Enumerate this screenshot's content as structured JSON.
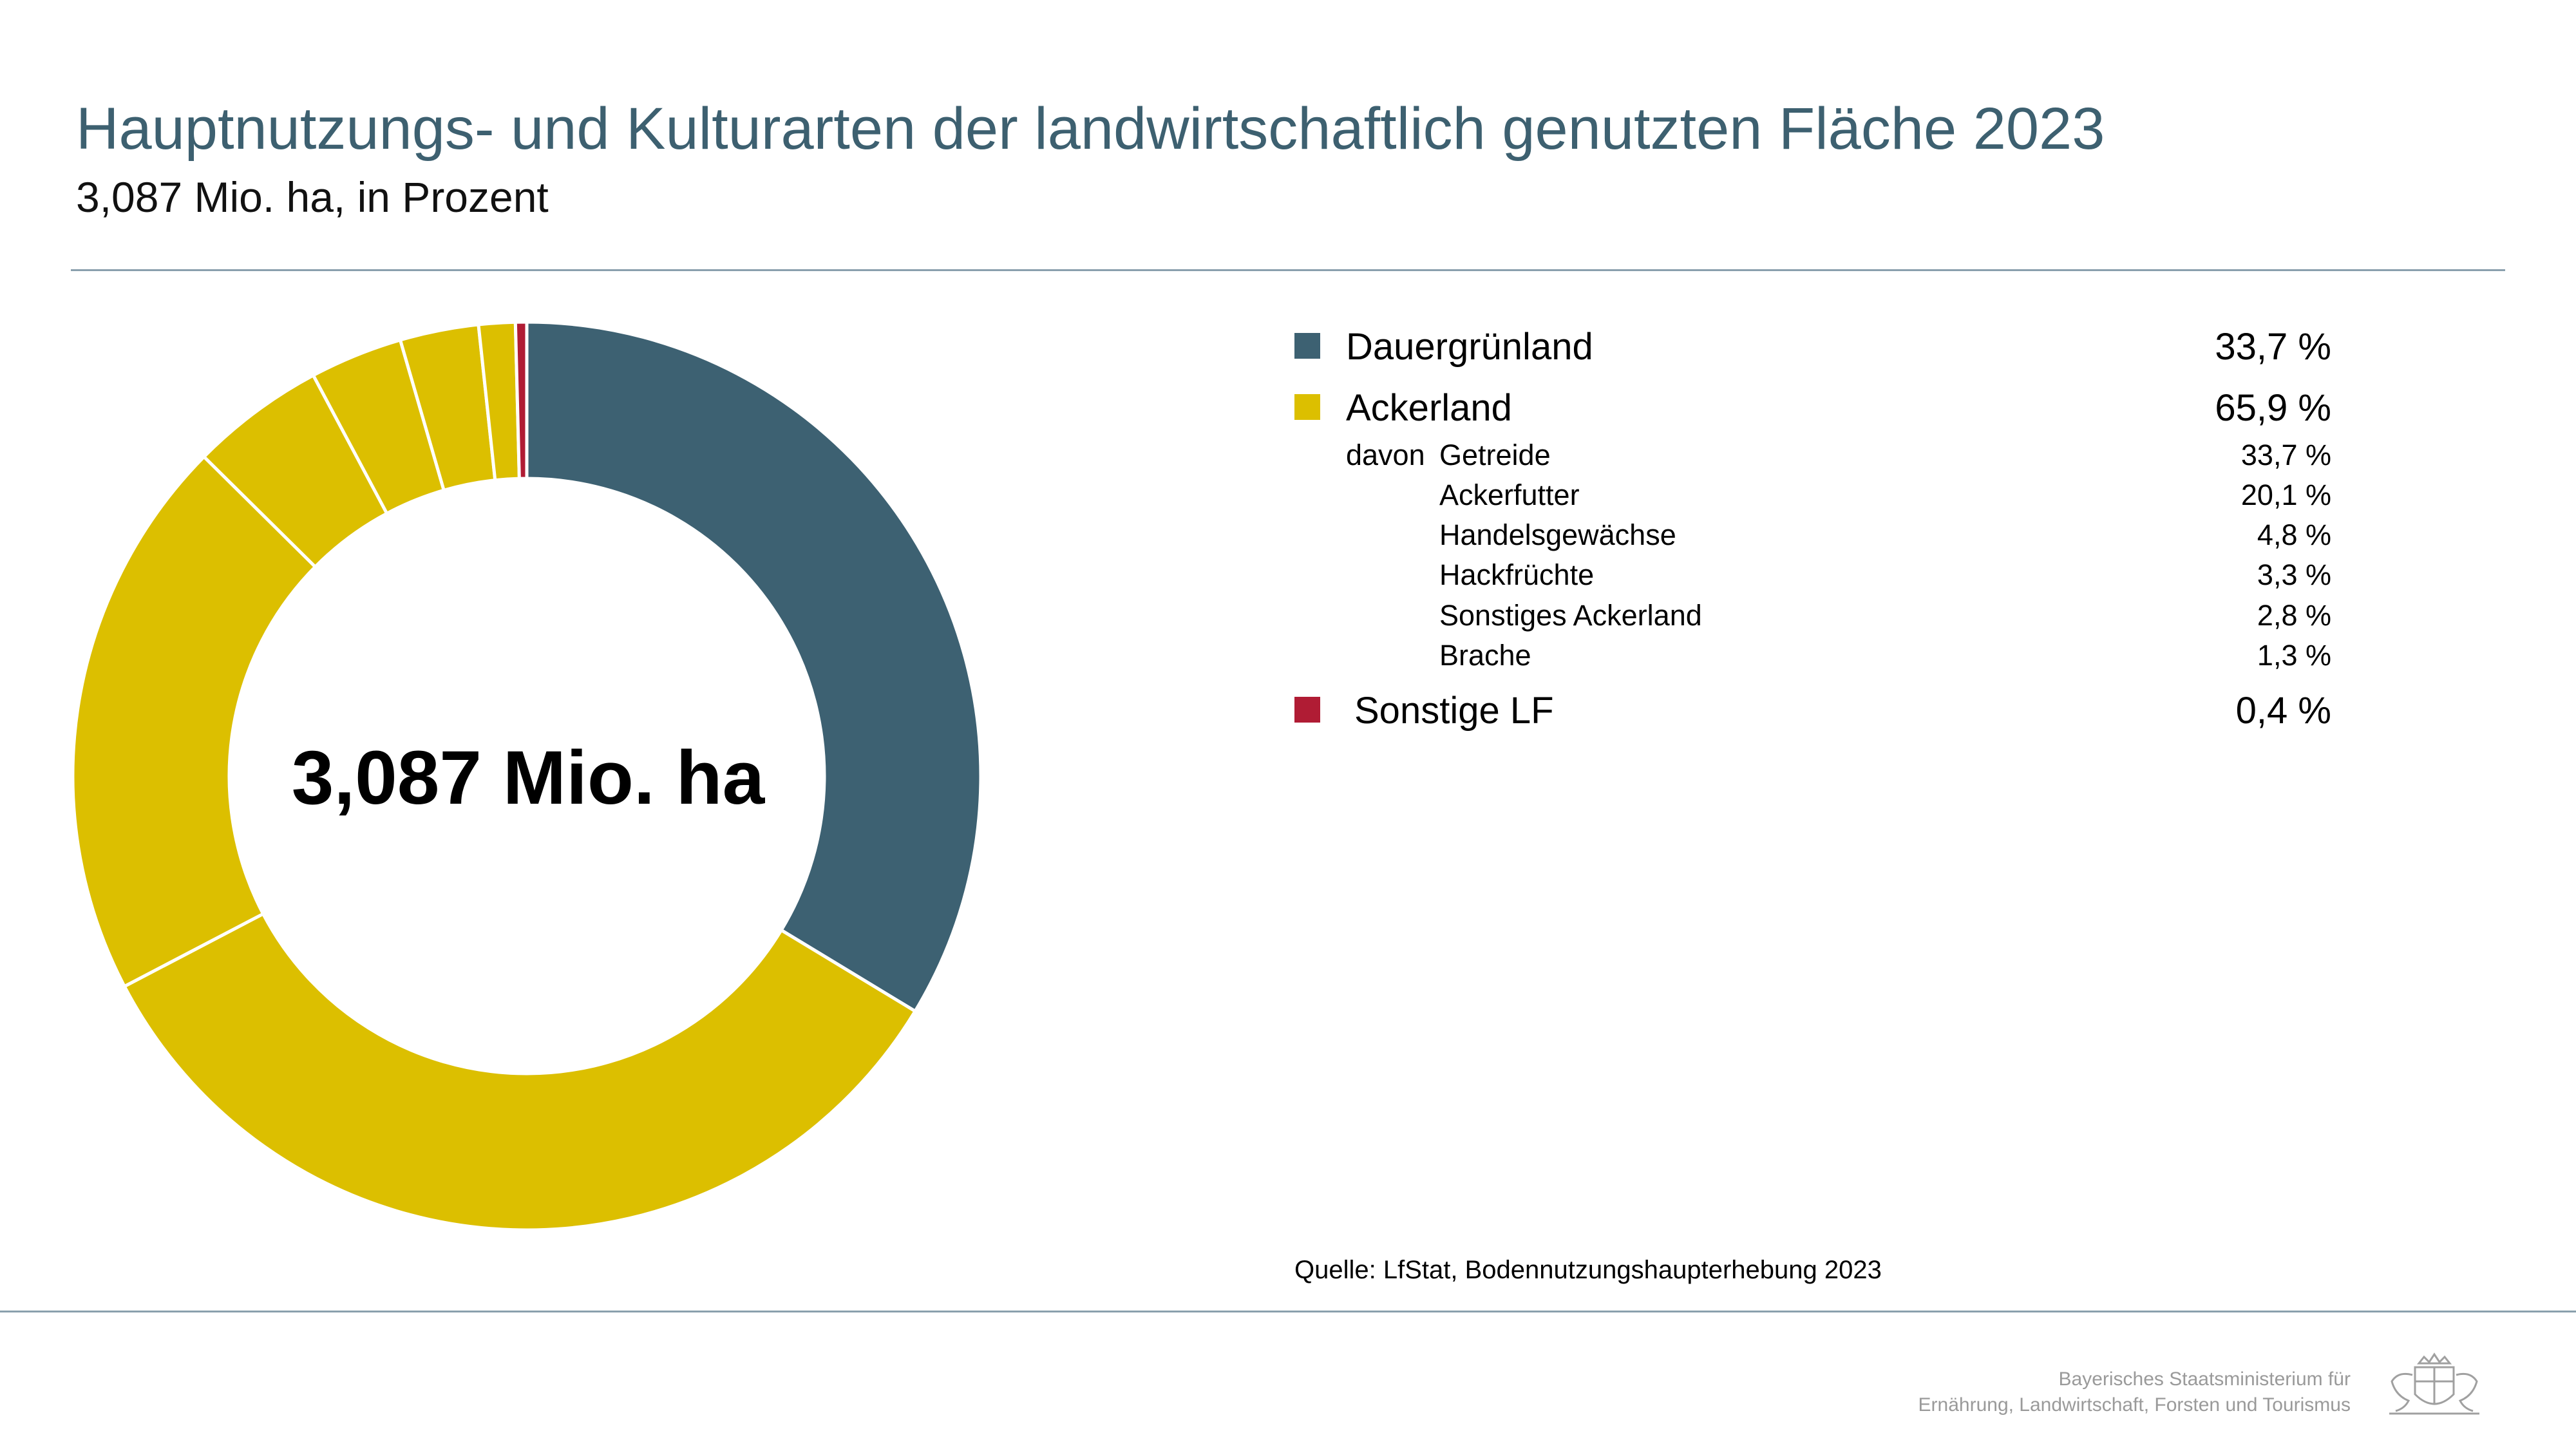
{
  "header": {
    "title": "Hauptnutzungs- und Kulturarten der landwirtschaftlich genutzten Fläche 2023",
    "subtitle": "3,087 Mio. ha, in Prozent"
  },
  "chart_data": {
    "type": "pie",
    "center_label": "3,087 Mio. ha",
    "segments": [
      {
        "name": "Dauergrünland",
        "value": 33.7,
        "color": "#3d6172"
      },
      {
        "name": "Getreide",
        "value": 33.7,
        "color": "#dcbf00"
      },
      {
        "name": "Ackerfutter",
        "value": 20.1,
        "color": "#dcbf00"
      },
      {
        "name": "Handelsgewächse",
        "value": 4.8,
        "color": "#dcbf00"
      },
      {
        "name": "Hackfrüchte",
        "value": 3.3,
        "color": "#dcbf00"
      },
      {
        "name": "Sonstiges Ackerland",
        "value": 2.8,
        "color": "#dcbf00"
      },
      {
        "name": "Brache",
        "value": 1.3,
        "color": "#dcbf00"
      },
      {
        "name": "Sonstige LF",
        "value": 0.4,
        "color": "#b01c34"
      }
    ]
  },
  "legend": {
    "main": [
      {
        "label": "Dauergrünland",
        "value": "33,7 %",
        "color": "#3d6172"
      },
      {
        "label": "Ackerland",
        "value": "65,9 %",
        "color": "#dcbf00"
      },
      {
        "label": "Sonstige LF",
        "value": "0,4 %",
        "color": "#b01c34"
      }
    ],
    "davon": "davon",
    "sub": [
      {
        "label": "Getreide",
        "value": "33,7 %"
      },
      {
        "label": "Ackerfutter",
        "value": "20,1 %"
      },
      {
        "label": "Handelsgewächse",
        "value": "4,8 %"
      },
      {
        "label": "Hackfrüchte",
        "value": "3,3 %"
      },
      {
        "label": "Sonstiges Ackerland",
        "value": "2,8 %"
      },
      {
        "label": "Brache",
        "value": "1,3 %"
      }
    ]
  },
  "source": "Quelle: LfStat, Bodennutzungshaupterhebung 2023",
  "footer": {
    "ministry_line1": "Bayerisches Staatsministerium für",
    "ministry_line2": "Ernährung, Landwirtschaft, Forsten und Tourismus",
    "crest_icon": "bavarian-coat-of-arms-icon"
  }
}
